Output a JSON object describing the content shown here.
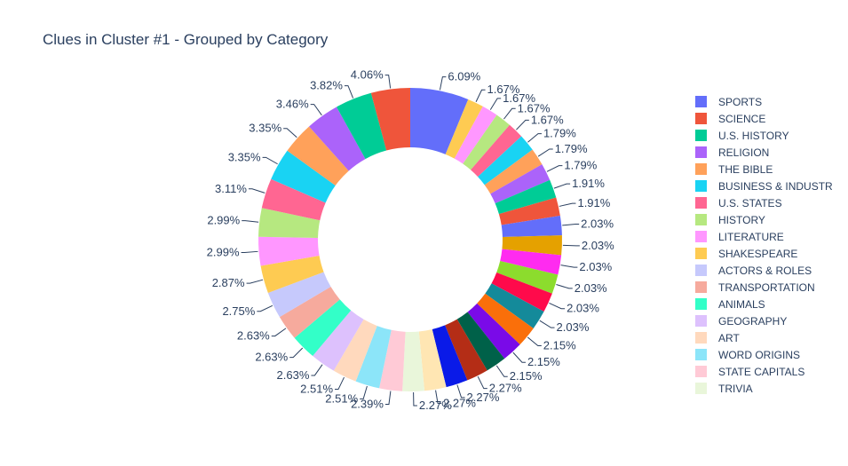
{
  "chart_data": {
    "type": "pie",
    "hole": true,
    "title": "Clues in Cluster #1 - Grouped by Category",
    "legend_position": "right",
    "legend_entries": [
      {
        "name": "SPORTS",
        "color": "#636efa"
      },
      {
        "name": "SCIENCE",
        "color": "#EF553B"
      },
      {
        "name": "U.S. HISTORY",
        "color": "#00cc96"
      },
      {
        "name": "RELIGION",
        "color": "#ab63fa"
      },
      {
        "name": "THE BIBLE",
        "color": "#FFA15A"
      },
      {
        "name": "BUSINESS & INDUSTR",
        "color": "#19d3f3"
      },
      {
        "name": "U.S. STATES",
        "color": "#FF6692"
      },
      {
        "name": "HISTORY",
        "color": "#B6E880"
      },
      {
        "name": "LITERATURE",
        "color": "#FF97FF"
      },
      {
        "name": "SHAKESPEARE",
        "color": "#FECB52"
      },
      {
        "name": "ACTORS & ROLES",
        "color": "#c6c9fc"
      },
      {
        "name": "TRANSPORTATION",
        "color": "#f6aa9d"
      },
      {
        "name": "ANIMALS",
        "color": "#33ffc8"
      },
      {
        "name": "GEOGRAPHY",
        "color": "#ddc1fd"
      },
      {
        "name": "ART",
        "color": "#ffd9bd"
      },
      {
        "name": "WORD ORIGINS",
        "color": "#8ce5f9"
      },
      {
        "name": "STATE CAPITALS",
        "color": "#ffcad6"
      },
      {
        "name": "TRIVIA",
        "color": "#e9f6da"
      }
    ],
    "slices": [
      {
        "value": 6.09,
        "label": "6.09%",
        "color": "#636efa"
      },
      {
        "value": 1.67,
        "label": "1.67%",
        "color": "#FECB52"
      },
      {
        "value": 1.67,
        "label": "1.67%",
        "color": "#FF97FF"
      },
      {
        "value": 1.67,
        "label": "1.67%",
        "color": "#B6E880"
      },
      {
        "value": 1.67,
        "label": "1.67%",
        "color": "#FF6692"
      },
      {
        "value": 1.79,
        "label": "1.79%",
        "color": "#19d3f3"
      },
      {
        "value": 1.79,
        "label": "1.79%",
        "color": "#FFA15A"
      },
      {
        "value": 1.79,
        "label": "1.79%",
        "color": "#ab63fa"
      },
      {
        "value": 1.91,
        "label": "1.91%",
        "color": "#00cc96"
      },
      {
        "value": 1.91,
        "label": "1.91%",
        "color": "#EF553B"
      },
      {
        "value": 2.03,
        "label": "2.03%",
        "color": "#636efa"
      },
      {
        "value": 2.03,
        "label": "2.03%",
        "color": "#e5a100"
      },
      {
        "value": 2.03,
        "label": "2.03%",
        "color": "#ff2bf0"
      },
      {
        "value": 2.03,
        "label": "2.03%",
        "color": "#8cdc2d"
      },
      {
        "value": 2.03,
        "label": "2.03%",
        "color": "#ff0a4b"
      },
      {
        "value": 2.03,
        "label": "2.03%",
        "color": "#148a9a"
      },
      {
        "value": 2.15,
        "label": "2.15%",
        "color": "#fa6f0a"
      },
      {
        "value": 2.15,
        "label": "2.15%",
        "color": "#7a0ae8"
      },
      {
        "value": 2.15,
        "label": "2.15%",
        "color": "#006149"
      },
      {
        "value": 2.27,
        "label": "2.27%",
        "color": "#b42d16"
      },
      {
        "value": 2.27,
        "label": "2.27%",
        "color": "#0a1ae8"
      },
      {
        "value": 2.27,
        "label": "2.27%",
        "color": "#ffe6b3"
      },
      {
        "value": 2.27,
        "label": "2.27%",
        "color": "#e9f6da"
      },
      {
        "value": 2.39,
        "label": "2.39%",
        "color": "#ffcad6"
      },
      {
        "value": 2.51,
        "label": "2.51%",
        "color": "#8ce5f9"
      },
      {
        "value": 2.51,
        "label": "2.51%",
        "color": "#ffd9bd"
      },
      {
        "value": 2.63,
        "label": "2.63%",
        "color": "#ddc1fd"
      },
      {
        "value": 2.63,
        "label": "2.63%",
        "color": "#33ffc8"
      },
      {
        "value": 2.63,
        "label": "2.63%",
        "color": "#f6aa9d"
      },
      {
        "value": 2.75,
        "label": "2.75%",
        "color": "#c6c9fc"
      },
      {
        "value": 2.87,
        "label": "2.87%",
        "color": "#FECB52"
      },
      {
        "value": 2.99,
        "label": "2.99%",
        "color": "#FF97FF"
      },
      {
        "value": 2.99,
        "label": "2.99%",
        "color": "#B6E880"
      },
      {
        "value": 3.11,
        "label": "3.11%",
        "color": "#FF6692"
      },
      {
        "value": 3.35,
        "label": "3.35%",
        "color": "#19d3f3"
      },
      {
        "value": 3.35,
        "label": "3.35%",
        "color": "#FFA15A"
      },
      {
        "value": 3.46,
        "label": "3.46%",
        "color": "#ab63fa"
      },
      {
        "value": 3.82,
        "label": "3.82%",
        "color": "#00cc96"
      },
      {
        "value": 4.06,
        "label": "4.06%",
        "color": "#EF553B"
      }
    ]
  }
}
